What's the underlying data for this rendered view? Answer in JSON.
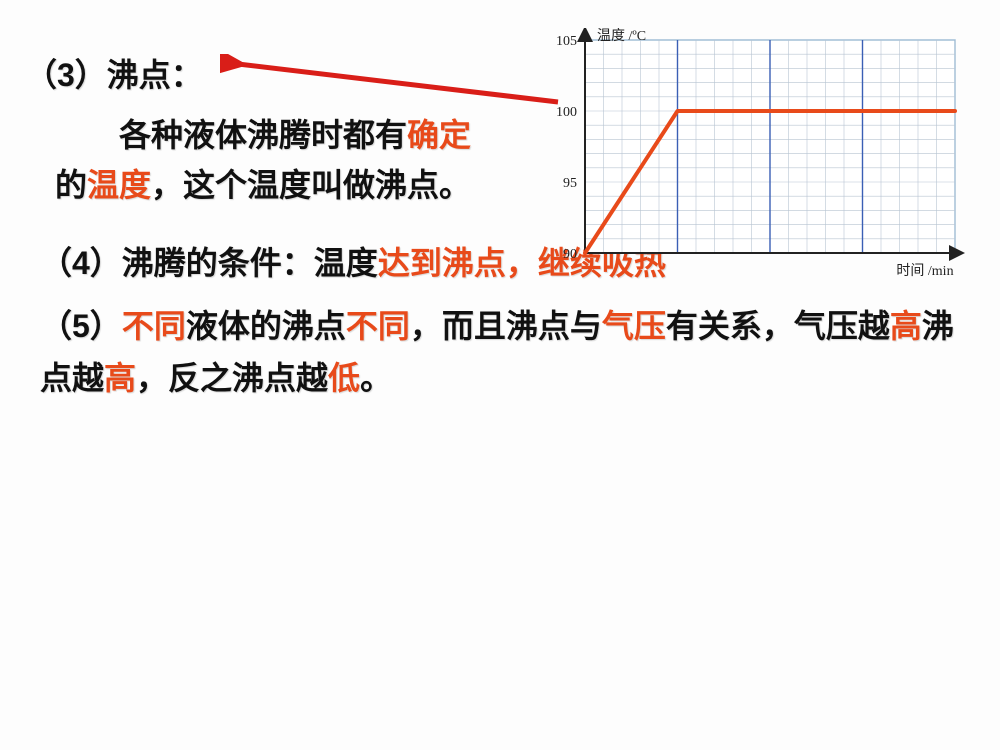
{
  "heading3": "（3）沸点：",
  "body3_parts": {
    "p1": "各种液体沸腾时都有",
    "kw_queding": "确定",
    "p2": "的",
    "kw_wendu": "温度",
    "p3": "，这个温度叫做沸点。"
  },
  "section4_parts": {
    "prefix": "（4）沸腾的条件：温度",
    "kw": "达到沸点，继续吸热"
  },
  "section5_parts": {
    "p1": "（5）",
    "kw_butong1": "不同",
    "p2": "液体的沸点",
    "kw_butong2": "不同",
    "p3": "，而且沸点与",
    "kw_qiya": "气压",
    "p4": "有关系，气压越",
    "kw_gao1": "高",
    "p5": "沸点越",
    "kw_gao2": "高",
    "p6": "，反之沸点越",
    "kw_di": "低",
    "p7": "。"
  },
  "chart": {
    "type": "line",
    "ylabel": "温度 /ºC",
    "xlabel": "时间 /min",
    "ylim": [
      90,
      105
    ],
    "ytick_step": 5,
    "yticks": [
      "105",
      "100",
      "95",
      "90"
    ],
    "label_fontsize": 14,
    "tick_fontsize": 14,
    "grid_minor_color": "#b8c4d2",
    "grid_major_color": "#3a5fb5",
    "background_color": "#ffffff",
    "axis_color": "#222222",
    "line_color": "#e84a1a",
    "line_width": 4,
    "data_points": [
      {
        "x": 0,
        "y": 90
      },
      {
        "x": 5,
        "y": 100
      },
      {
        "x": 20,
        "y": 100
      }
    ],
    "major_vlines_x": [
      5,
      10,
      15
    ],
    "plot_width_units": 20,
    "minor_step_units": 1
  },
  "colors": {
    "keyword": "#e84a1a",
    "text": "#111111",
    "arrow": "#d91e18"
  }
}
